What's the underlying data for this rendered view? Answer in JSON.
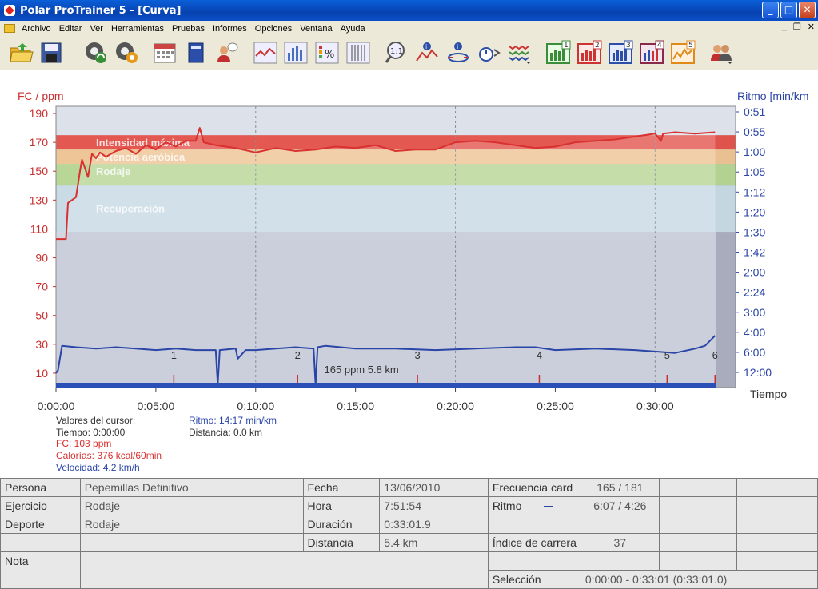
{
  "window": {
    "title": "Polar ProTrainer 5 - [Curva]",
    "min": "_",
    "max": "□",
    "close": "✕"
  },
  "menu": [
    "Archivo",
    "Editar",
    "Ver",
    "Herramientas",
    "Pruebas",
    "Informes",
    "Opciones",
    "Ventana",
    "Ayuda"
  ],
  "mdi": {
    "min": "_",
    "restore": "❐",
    "close": "✕"
  },
  "toolbar": {
    "icons": [
      "open-folder-icon",
      "save-icon",
      "sync-icon",
      "settings-icon",
      "calendar-icon",
      "book-icon",
      "user-icon",
      "line-chart-icon",
      "bar-chart-icon",
      "percent-chart-icon",
      "table-chart-icon",
      "zoom-1-1-icon",
      "info-chart-icon",
      "info-compass-icon",
      "stopwatch-icon",
      "wave-lines-icon",
      "lap-1-icon",
      "lap-2-icon",
      "lap-3-icon",
      "lap-4-icon",
      "lap-5-icon",
      "users-icon"
    ],
    "lap_numbers": [
      "1",
      "2",
      "3",
      "4",
      "5"
    ],
    "zoom_label": "1:1"
  },
  "chart_data": {
    "type": "line",
    "left_axis_label": "FC / ppm",
    "right_axis_label": "Ritmo [min/km",
    "x_axis_label": "Tiempo",
    "x_ticks": [
      "0:00:00",
      "0:05:00",
      "0:10:00",
      "0:15:00",
      "0:20:00",
      "0:25:00",
      "0:30:00"
    ],
    "left_ticks": [
      "190",
      "170",
      "150",
      "130",
      "110",
      "90",
      "70",
      "50",
      "30",
      "10"
    ],
    "right_ticks": [
      "0:51",
      "0:55",
      "1:00",
      "1:05",
      "1:12",
      "1:20",
      "1:30",
      "1:42",
      "2:00",
      "2:24",
      "3:00",
      "4:00",
      "6:00",
      "12:00"
    ],
    "ylim": [
      0,
      195
    ],
    "xlim_minutes": [
      0,
      33.03
    ],
    "zones": [
      {
        "name": "Intensidad máxima",
        "from": 165,
        "to": 175,
        "color": "#e8443a"
      },
      {
        "name": "Potencia aeróbica",
        "from": 155,
        "to": 165,
        "color": "#f4c38a"
      },
      {
        "name": "Rodaje",
        "from": 140,
        "to": 155,
        "color": "#b5d78a"
      },
      {
        "name": "Recuperación",
        "from": 108,
        "to": 140,
        "color": "#c9dde6"
      }
    ],
    "laps": [
      "1",
      "2",
      "3",
      "4",
      "5",
      "6"
    ],
    "lap_minutes": [
      5.9,
      12.1,
      18.1,
      24.2,
      30.6,
      33.0
    ],
    "lap_label": "165 ppm 5.8 km",
    "series": [
      {
        "name": "FC",
        "color": "#d93030",
        "x": [
          0,
          0.5,
          0.6,
          1.0,
          1.2,
          1.3,
          1.6,
          1.8,
          2.0,
          2.2,
          2.5,
          3,
          3.5,
          4,
          4.5,
          5,
          5.5,
          6,
          6.5,
          7,
          7.2,
          7.4,
          8,
          9,
          10,
          11,
          12,
          13,
          14,
          15,
          16,
          17,
          18,
          19,
          20,
          21,
          22,
          23,
          24,
          25,
          26,
          27,
          28,
          29,
          30,
          30.3,
          30.4,
          31,
          32,
          33
        ],
        "y": [
          103,
          103,
          128,
          132,
          150,
          158,
          146,
          162,
          159,
          163,
          160,
          164,
          166,
          162,
          168,
          165,
          170,
          167,
          171,
          171,
          180,
          170,
          168,
          166,
          163,
          166,
          164,
          165,
          167,
          166,
          168,
          164,
          165,
          165,
          170,
          171,
          170,
          168,
          166,
          167,
          170,
          171,
          172,
          174,
          176,
          171,
          176,
          177,
          176,
          177
        ]
      },
      {
        "name": "Ritmo",
        "color": "#2a45a8",
        "x": [
          0,
          0.1,
          0.3,
          1,
          2,
          3,
          4,
          5,
          6,
          7,
          8,
          8.1,
          8.2,
          9,
          9.1,
          9.5,
          10,
          11,
          12,
          12.9,
          13,
          13.1,
          13.5,
          15,
          17,
          19,
          21,
          23,
          24,
          25,
          27,
          29,
          30,
          31,
          32,
          32.5,
          33
        ],
        "y": [
          10,
          12,
          29,
          28,
          27,
          28,
          27,
          26,
          27,
          26,
          26,
          2,
          26,
          27,
          20,
          26,
          26,
          27,
          28,
          27,
          2,
          28,
          29,
          27,
          27,
          26,
          27,
          28,
          28,
          26,
          27,
          26,
          25,
          24,
          27,
          29,
          36
        ]
      }
    ]
  },
  "cursor": {
    "title": "Valores del cursor:",
    "tiempo": "Tiempo: 0:00:00",
    "fc": "FC: 103 ppm",
    "calorias": "Calorías: 376 kcal/60min",
    "velocidad": "Velocidad: 4.2 km/h",
    "ritmo": "Ritmo: 14:17 min/km",
    "distancia": "Distancia: 0.0 km"
  },
  "stats": {
    "persona_l": "Persona",
    "persona_v": "Pepemillas Definitivo",
    "ejercicio_l": "Ejercicio",
    "ejercicio_v": "Rodaje",
    "deporte_l": "Deporte",
    "deporte_v": "Rodaje",
    "nota_l": "Nota",
    "fecha_l": "Fecha",
    "fecha_v": "13/06/2010",
    "hora_l": "Hora",
    "hora_v": "7:51:54",
    "duracion_l": "Duración",
    "duracion_v": "0:33:01.9",
    "distancia_l": "Distancia",
    "distancia_v": "5.4 km",
    "fc_l": "Frecuencia card",
    "fc_v": "165 / 181",
    "ritmo_l": "Ritmo",
    "ritmo_v": "6:07 / 4:26",
    "indice_l": "Índice de carrera",
    "indice_v": "37",
    "seleccion_l": "Selección",
    "seleccion_v": "0:00:00 - 0:33:01 (0:33:01.0)"
  }
}
